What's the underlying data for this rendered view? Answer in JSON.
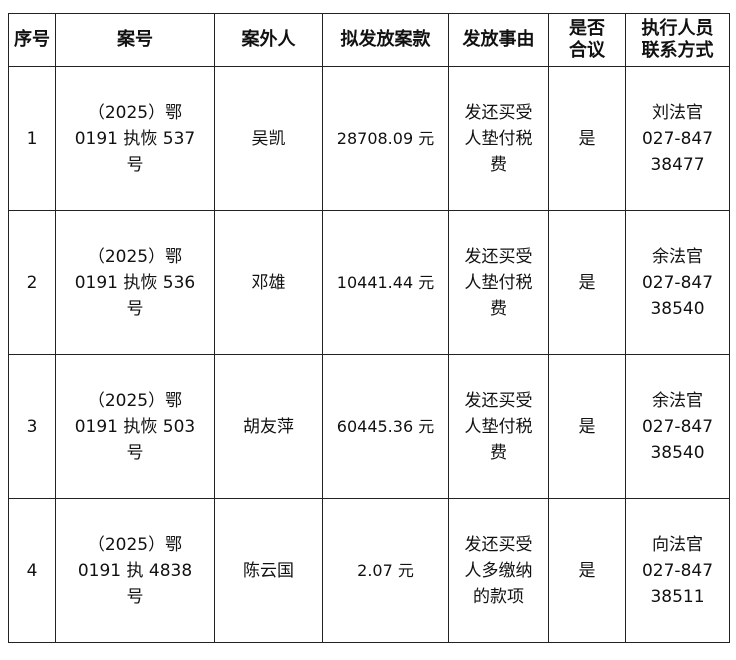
{
  "headers": [
    "序号",
    "案号",
    "案外人",
    "拟发放案款",
    "发放事由",
    "是否合议",
    "执行人员联系方式"
  ],
  "rows": [
    {
      "no": "1",
      "case_no": "（2025）鄂 0191 执恢 537 号",
      "party": "吴凯",
      "amount": "28708.09 元",
      "reason": "发还买受人垫付税费",
      "collegial": "是",
      "officer": "刘法官",
      "phone": "027-84738477"
    },
    {
      "no": "2",
      "case_no": "（2025）鄂 0191 执恢 536 号",
      "party": "邓雄",
      "amount": "10441.44 元",
      "reason": "发还买受人垫付税费",
      "collegial": "是",
      "officer": "余法官",
      "phone": "027-84738540"
    },
    {
      "no": "3",
      "case_no": "（2025）鄂 0191 执恢 503 号",
      "party": "胡友萍",
      "amount": "60445.36 元",
      "reason": "发还买受人垫付税费",
      "collegial": "是",
      "officer": "余法官",
      "phone": "027-84738540"
    },
    {
      "no": "4",
      "case_no": "（2025）鄂 0191 执 4838 号",
      "party": "陈云国",
      "amount": "2.07 元",
      "reason": "发还买受人多缴纳的款项",
      "collegial": "是",
      "officer": "向法官",
      "phone": "027-84738511"
    }
  ]
}
